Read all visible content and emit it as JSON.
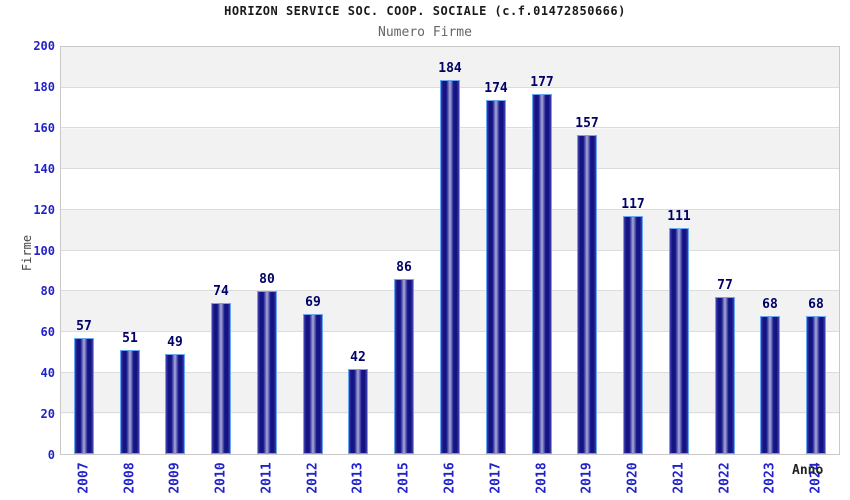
{
  "header": {
    "title": "HORIZON SERVICE SOC. COOP. SOCIALE (c.f.01472850666)",
    "subtitle": "Numero Firme"
  },
  "axes": {
    "y_label": "Firme",
    "x_label": "Anno",
    "y_ticks": [
      0,
      20,
      40,
      60,
      80,
      100,
      120,
      140,
      160,
      180,
      200
    ]
  },
  "chart_data": {
    "type": "bar",
    "title": "HORIZON SERVICE SOC. COOP. SOCIALE (c.f.01472850666)",
    "subtitle": "Numero Firme",
    "xlabel": "Anno",
    "ylabel": "Firme",
    "categories": [
      "2007",
      "2008",
      "2009",
      "2010",
      "2011",
      "2012",
      "2013",
      "2015",
      "2016",
      "2017",
      "2018",
      "2019",
      "2020",
      "2021",
      "2022",
      "2023",
      "2024"
    ],
    "values": [
      57,
      51,
      49,
      74,
      80,
      69,
      42,
      86,
      184,
      174,
      177,
      157,
      117,
      111,
      77,
      68,
      68
    ],
    "ylim": [
      0,
      200
    ],
    "y_tick_interval": 20,
    "grid": true,
    "band_fill_alternating": true,
    "legend_position": "none",
    "value_labels_shown": true
  },
  "colors": {
    "bar_edge": "#12127e",
    "bar_center": "#a9aada",
    "bar_border": "#6aa7f0",
    "tick_label": "#2222cc",
    "value_label": "#000066",
    "band": "#f2f2f2",
    "gridline": "#dcdcdc",
    "plot_border": "#c9c9c9",
    "title_color": "#1a1a1a",
    "subtitle_color": "#666666"
  }
}
